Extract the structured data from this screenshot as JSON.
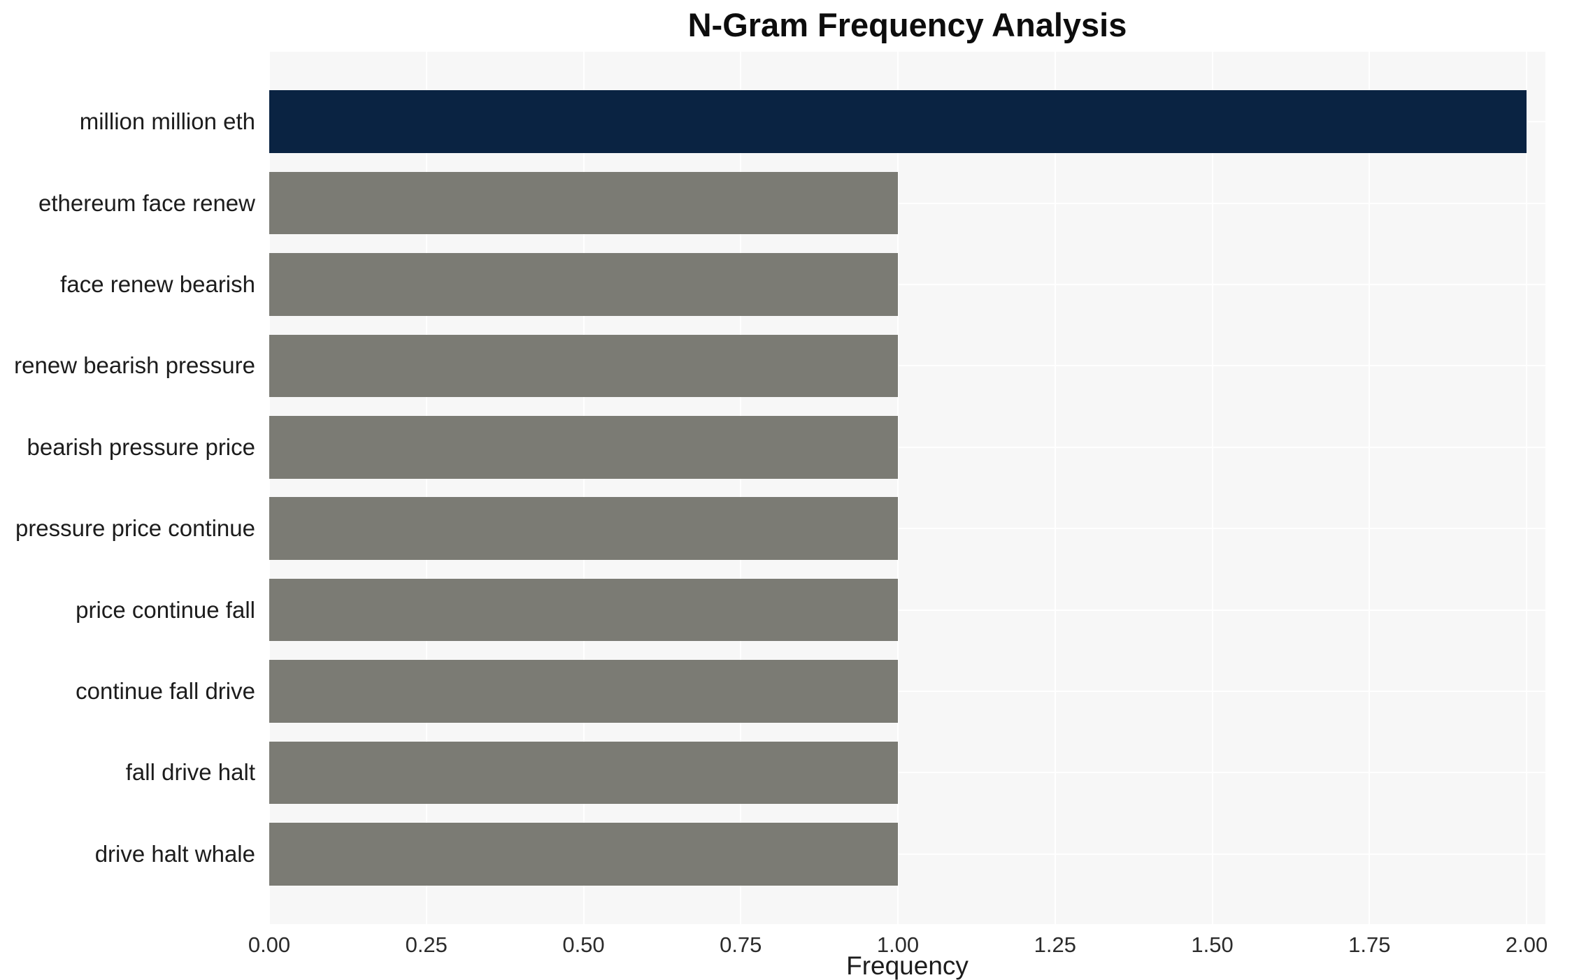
{
  "chart_data": {
    "type": "bar",
    "orientation": "horizontal",
    "title": "N-Gram Frequency Analysis",
    "xlabel": "Frequency",
    "ylabel": "",
    "categories": [
      "million million eth",
      "ethereum face renew",
      "face renew bearish",
      "renew bearish pressure",
      "bearish pressure price",
      "pressure price continue",
      "price continue fall",
      "continue fall drive",
      "fall drive halt",
      "drive halt whale"
    ],
    "values": [
      2,
      1,
      1,
      1,
      1,
      1,
      1,
      1,
      1,
      1
    ],
    "highlight_index": 0,
    "xlim": [
      0,
      2.03
    ],
    "xticks": [
      0,
      0.25,
      0.5,
      0.75,
      1,
      1.25,
      1.5,
      1.75,
      2
    ],
    "xtick_labels": [
      "0.00",
      "0.25",
      "0.50",
      "0.75",
      "1.00",
      "1.25",
      "1.50",
      "1.75",
      "2.00"
    ],
    "grid": true,
    "legend": "none",
    "colors": {
      "highlight": "#0a2342",
      "default": "#7b7b74",
      "plot_bg": "#f7f7f7",
      "grid_line": "#ffffff"
    }
  }
}
